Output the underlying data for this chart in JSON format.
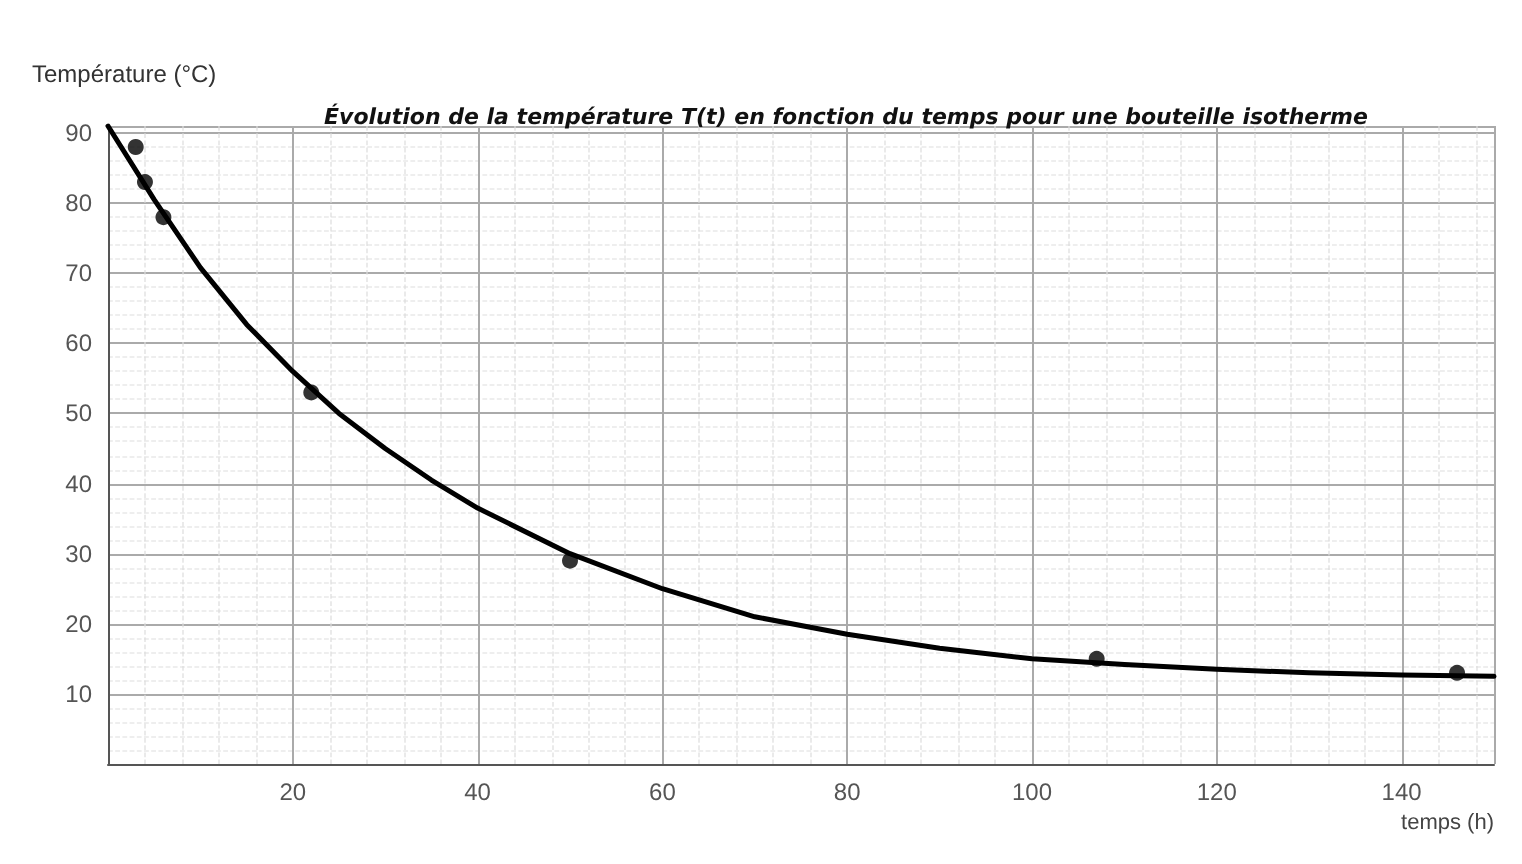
{
  "chart_data": {
    "type": "line",
    "title": "Évolution de la température T(t) en fonction du temps pour une bouteille isotherme",
    "xlabel": "temps (h)",
    "ylabel": "Température (°C)",
    "series": [
      {
        "marker": "none",
        "color": "#000000",
        "x": [
          0,
          5,
          10,
          15,
          20,
          25,
          30,
          35,
          40,
          50,
          60,
          70,
          80,
          90,
          100,
          110,
          120,
          130,
          140,
          150
        ],
        "values": [
          91,
          80.5,
          70.8,
          62.7,
          56,
          50,
          45,
          40.5,
          36.5,
          30,
          25,
          21,
          18.5,
          16.5,
          15,
          14.2,
          13.5,
          13,
          12.7,
          12.5
        ]
      },
      {
        "type": "scatter",
        "marker": "circle",
        "color": "#000000",
        "x": [
          3,
          4,
          6,
          22,
          50,
          107,
          146
        ],
        "values": [
          88,
          83,
          78,
          53,
          29,
          15,
          13
        ]
      }
    ],
    "xlim": [
      0,
      150
    ],
    "ylim": [
      0,
      91
    ],
    "xticks": [
      20,
      40,
      60,
      80,
      100,
      120,
      140
    ],
    "yticks": [
      10,
      20,
      30,
      40,
      50,
      60,
      70,
      80,
      90
    ],
    "grid": true,
    "line_style": "solid"
  }
}
